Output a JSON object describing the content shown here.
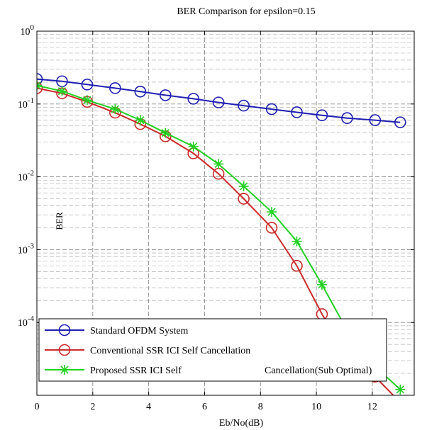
{
  "chart_data": {
    "type": "line",
    "title": "BER Comparison for epsilon=0.15",
    "xlabel": "Eb/No(dB)",
    "ylabel": "BER",
    "xlim": [
      0,
      13.5
    ],
    "ylim": [
      1e-05,
      1
    ],
    "yscale": "log",
    "grid": true,
    "legend_position": "bottom-left",
    "x_ticks": [
      0,
      2,
      4,
      6,
      8,
      10,
      12
    ],
    "y_ticks": [
      {
        "value": 1,
        "base": "10",
        "exp": "0"
      },
      {
        "value": 0.1,
        "base": "10",
        "exp": "-1"
      },
      {
        "value": 0.01,
        "base": "10",
        "exp": "-2"
      },
      {
        "value": 0.001,
        "base": "10",
        "exp": "-3"
      },
      {
        "value": 0.0001,
        "base": "10",
        "exp": "-4"
      }
    ],
    "series": [
      {
        "name": "Standard OFDM System",
        "color": "#1f1fb4",
        "marker": "circle",
        "x": [
          0,
          0.9,
          1.8,
          2.8,
          3.7,
          4.6,
          5.6,
          6.5,
          7.4,
          8.4,
          9.3,
          10.2,
          11.1,
          12.1,
          13.0
        ],
        "y": [
          0.22,
          0.205,
          0.185,
          0.165,
          0.148,
          0.132,
          0.118,
          0.105,
          0.095,
          0.085,
          0.077,
          0.07,
          0.064,
          0.06,
          0.056
        ]
      },
      {
        "name": "Conventional SSR ICI Self Cancellation",
        "color": "#cc2a2a",
        "marker": "circle",
        "x": [
          0,
          0.9,
          1.8,
          2.8,
          3.7,
          4.6,
          5.6,
          6.5,
          7.4,
          8.4,
          9.3,
          10.2,
          11.1,
          12.1,
          13.0
        ],
        "y": [
          0.165,
          0.14,
          0.107,
          0.076,
          0.053,
          0.036,
          0.021,
          0.011,
          0.005,
          0.002,
          0.0006,
          0.00013,
          3.5e-05,
          1.8e-05,
          8e-06
        ]
      },
      {
        "name": "Proposed SSR ICI Self",
        "name_suffix": "Cancellation(Sub Optimal)",
        "color": "#22d022",
        "marker": "star",
        "x": [
          0,
          0.9,
          1.8,
          2.8,
          3.7,
          4.6,
          5.6,
          6.5,
          7.4,
          8.4,
          9.3,
          10.2,
          11.1,
          12.1,
          13.0
        ],
        "y": [
          0.18,
          0.15,
          0.113,
          0.085,
          0.06,
          0.04,
          0.026,
          0.015,
          0.0074,
          0.0033,
          0.0013,
          0.00033,
          7.8e-05,
          2.5e-05,
          1.2e-05
        ]
      }
    ]
  }
}
